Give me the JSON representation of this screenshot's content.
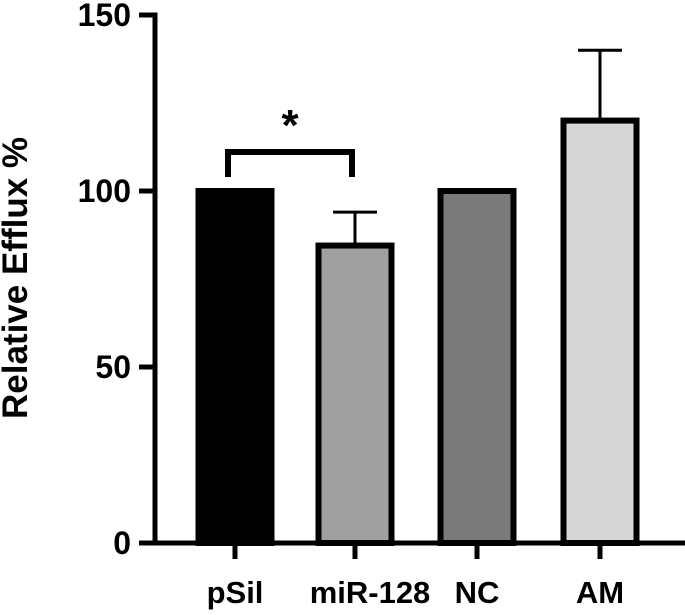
{
  "chart_data": {
    "type": "bar",
    "title": "",
    "xlabel": "",
    "ylabel": "Relative Efflux %",
    "ylim": [
      0,
      150
    ],
    "yticks": [
      0,
      50,
      100,
      150
    ],
    "ytick_labels": [
      "0",
      "50",
      "100",
      "150"
    ],
    "categories": [
      "pSil",
      "miR-128",
      "NC",
      "AM"
    ],
    "values": [
      100,
      84.5,
      100,
      120
    ],
    "error_upper": [
      0,
      9.5,
      0,
      20
    ],
    "bar_colors": [
      "#000000",
      "#a0a0a0",
      "#7a7a7a",
      "#d6d6d6"
    ],
    "significance": [
      {
        "from": "pSil",
        "to": "miR-128",
        "label": "*"
      }
    ],
    "grid": false,
    "legend": "none"
  }
}
